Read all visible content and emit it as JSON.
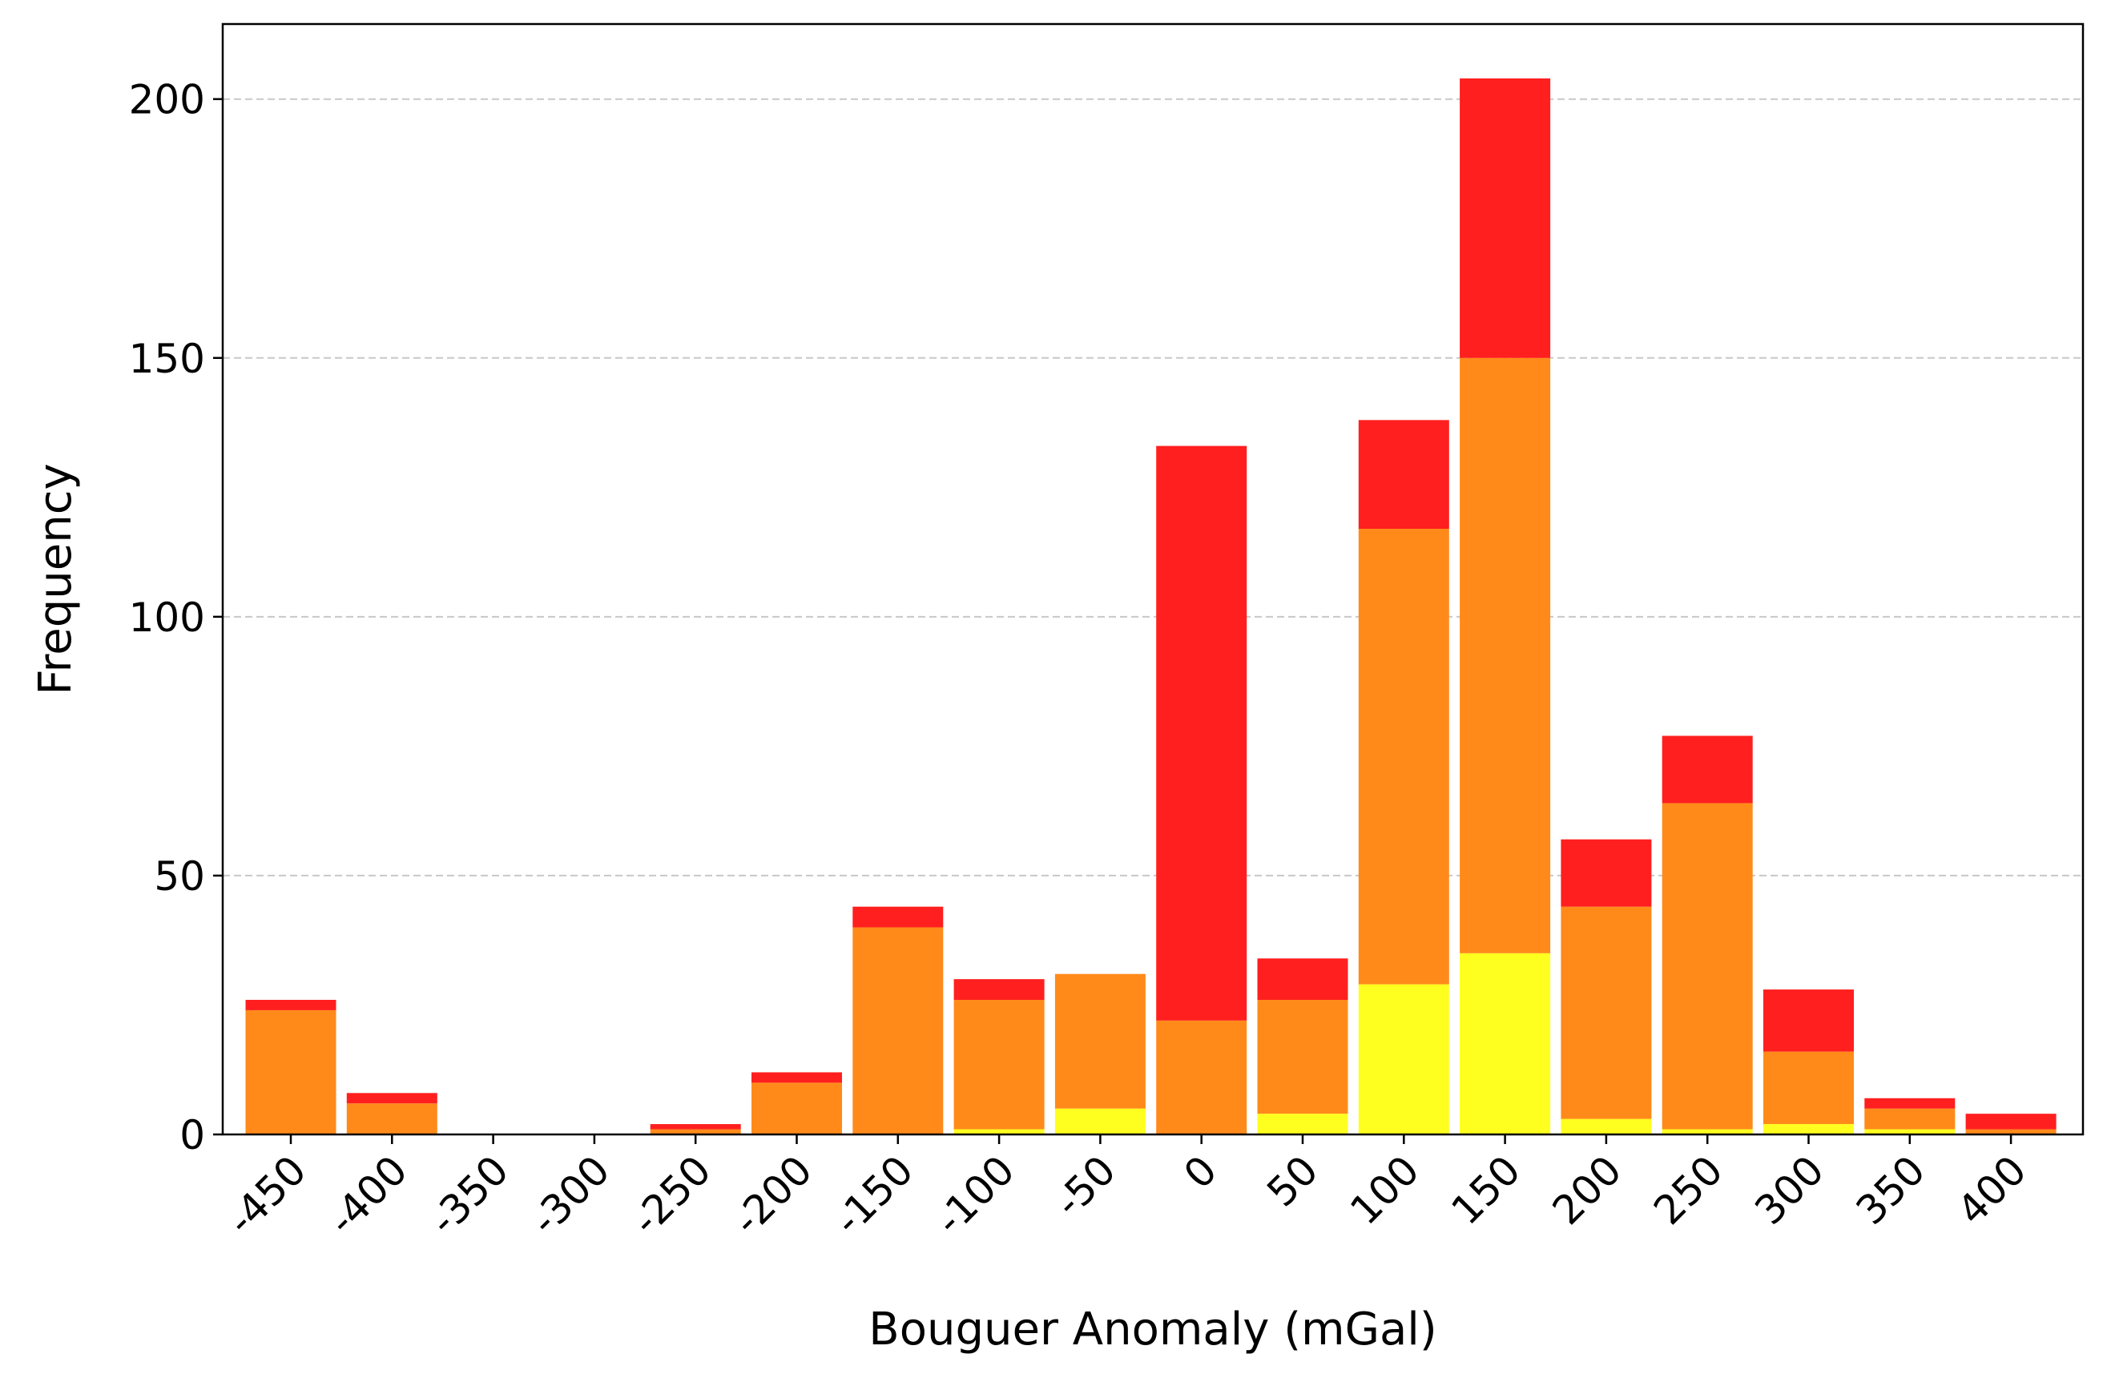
{
  "chart_data": {
    "type": "bar",
    "stacked": true,
    "categories": [
      "-450",
      "-400",
      "-350",
      "-300",
      "-250",
      "-200",
      "-150",
      "-100",
      "-50",
      "0",
      "50",
      "100",
      "150",
      "200",
      "250",
      "300",
      "350",
      "400"
    ],
    "series": [
      {
        "color": "#ffff1f",
        "values": [
          0,
          0,
          0,
          0,
          0,
          0,
          0,
          1,
          5,
          0,
          4,
          29,
          35,
          3,
          1,
          2,
          1,
          0
        ]
      },
      {
        "color": "#ff8a1a",
        "values": [
          24,
          6,
          0,
          0,
          1,
          10,
          40,
          25,
          26,
          22,
          22,
          88,
          115,
          41,
          63,
          14,
          4,
          1
        ]
      },
      {
        "color": "#ff1f1f",
        "values": [
          2,
          2,
          0,
          0,
          1,
          2,
          4,
          4,
          0,
          111,
          8,
          21,
          54,
          13,
          13,
          12,
          2,
          3
        ]
      }
    ],
    "xlabel": "Bouguer Anomaly (mGal)",
    "ylabel": "Frequency",
    "ylim": [
      0,
      214.5
    ],
    "yticks": [
      0,
      50,
      100,
      150,
      200
    ],
    "grid": "y-dashed",
    "legend": "none"
  }
}
